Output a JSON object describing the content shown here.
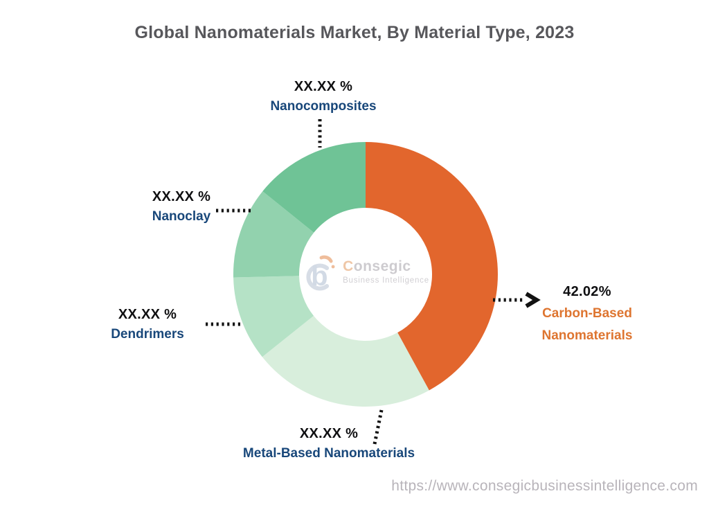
{
  "title": "Global Nanomaterials Market, By Material Type, 2023",
  "colors": {
    "accent_orange": "#E2662D",
    "label_navy": "#18477A",
    "label_orange": "#DE7530",
    "title_gray": "#57575B",
    "url_gray": "#B8B4BA",
    "callout_black": "#121212"
  },
  "chart_data": {
    "type": "pie",
    "donut": true,
    "title": "Global Nanomaterials Market, By Material Type, 2023",
    "legend": "none",
    "start_angle_deg": 0,
    "direction": "clockwise-from-top",
    "slices": [
      {
        "name": "Carbon-Based Nanomaterials",
        "label_lines": [
          "Carbon-Based",
          "Nanomaterials"
        ],
        "value_label": "42.02%",
        "value_pct": 42.02,
        "color": "#E2662D",
        "label_color": "#DE7530"
      },
      {
        "name": "Metal-Based Nanomaterials",
        "label_lines": [
          "Metal-Based Nanomaterials"
        ],
        "value_label": "XX.XX %",
        "value_pct": 22.25,
        "color": "#D8EEDC",
        "label_color": "#18477A"
      },
      {
        "name": "Dendrimers",
        "label_lines": [
          "Dendrimers"
        ],
        "value_label": "XX.XX %",
        "value_pct": 10.35,
        "color": "#B5E2C6",
        "label_color": "#18477A"
      },
      {
        "name": "Nanoclay",
        "label_lines": [
          "Nanoclay"
        ],
        "value_label": "XX.XX %",
        "value_pct": 11.18,
        "color": "#92D2AE",
        "label_color": "#18477A"
      },
      {
        "name": "Nanocomposites",
        "label_lines": [
          "Nanocomposites"
        ],
        "value_label": "XX.XX %",
        "value_pct": 14.2,
        "color": "#6FC396",
        "label_color": "#18477A"
      }
    ]
  },
  "watermark": {
    "logo_letter": "b",
    "brand_initial": "C",
    "brand_rest": "onsegic",
    "subtitle": "Business Intelligence"
  },
  "footer": {
    "url": "https://www.consegicbusinessintelligence.com"
  }
}
